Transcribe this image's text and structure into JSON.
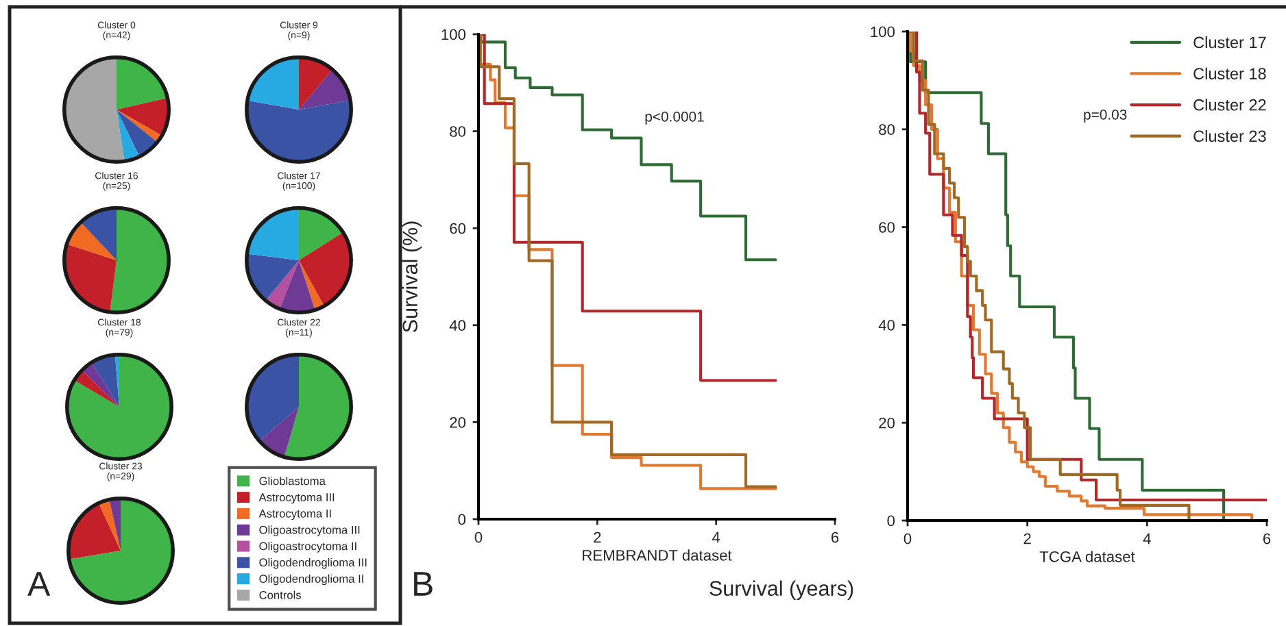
{
  "chart_data": [
    {
      "type": "pie",
      "title": "Cluster 0",
      "subtitle": "(n=42)",
      "categories": [
        "Glioblastoma",
        "Astrocytoma III",
        "Astrocytoma II",
        "Oligoastrocytoma III",
        "Oligoastrocytoma II",
        "Oligodendroglioma III",
        "Oligodendroglioma II",
        "Controls"
      ],
      "values": [
        21.4,
        11.9,
        2.4,
        0,
        0,
        7.1,
        4.8,
        52.4
      ],
      "colors": [
        "#3fb549",
        "#c3202a",
        "#f26b22",
        "#6e3a96",
        "#b54fa0",
        "#3a53a4",
        "#27aae1",
        "#a7a7a7"
      ],
      "legend": "bottom right"
    },
    {
      "type": "pie",
      "title": "Cluster 9",
      "subtitle": "(n=9)",
      "categories": [
        null,
        null,
        null,
        null,
        null,
        null,
        null,
        null
      ],
      "values": [
        0,
        11.1,
        0,
        11.1,
        0,
        55.6,
        22.2,
        0
      ],
      "colors": [
        "#3fb549",
        "#c3202a",
        "#f26b22",
        "#6e3a96",
        "#b54fa0",
        "#3a53a4",
        "#27aae1",
        "#a7a7a7"
      ]
    },
    {
      "type": "pie",
      "title": "Cluster 16",
      "subtitle": "(n=25)",
      "categories": [
        null,
        null,
        null,
        null,
        null,
        null,
        null,
        null
      ],
      "values": [
        52,
        28,
        8,
        0,
        0,
        12,
        0,
        0
      ],
      "colors": [
        "#3fb549",
        "#c3202a",
        "#f26b22",
        "#6e3a96",
        "#b54fa0",
        "#3a53a4",
        "#27aae1",
        "#a7a7a7"
      ]
    },
    {
      "type": "pie",
      "title": "Cluster 17",
      "subtitle": "(n=100)",
      "categories": [
        null,
        null,
        null,
        null,
        null,
        null,
        null,
        null
      ],
      "values": [
        16,
        26,
        3,
        11,
        5,
        16,
        23,
        0
      ],
      "colors": [
        "#3fb549",
        "#c3202a",
        "#f26b22",
        "#6e3a96",
        "#b54fa0",
        "#3a53a4",
        "#27aae1",
        "#a7a7a7"
      ]
    },
    {
      "type": "pie",
      "title": "Cluster 18",
      "subtitle": "(n=79)",
      "categories": [
        null,
        null,
        null,
        null,
        null,
        null,
        null,
        null
      ],
      "values": [
        83.5,
        3.8,
        0,
        3.8,
        0,
        7.6,
        1.3,
        0
      ],
      "colors": [
        "#3fb549",
        "#c3202a",
        "#f26b22",
        "#6e3a96",
        "#b54fa0",
        "#3a53a4",
        "#27aae1",
        "#a7a7a7"
      ]
    },
    {
      "type": "pie",
      "title": "Cluster 22",
      "subtitle": "(n=11)",
      "categories": [
        null,
        null,
        null,
        null,
        null,
        null,
        null,
        null
      ],
      "values": [
        54.5,
        0,
        0,
        9.1,
        0,
        36.4,
        0,
        0
      ],
      "colors": [
        "#3fb549",
        "#c3202a",
        "#f26b22",
        "#6e3a96",
        "#b54fa0",
        "#3a53a4",
        "#27aae1",
        "#a7a7a7"
      ]
    },
    {
      "type": "pie",
      "title": "Cluster 23",
      "subtitle": "(n=29)",
      "categories": [
        null,
        null,
        null,
        null,
        null,
        null,
        null,
        null
      ],
      "values": [
        72.4,
        20.7,
        3.4,
        3.5,
        0,
        0,
        0,
        0
      ],
      "colors": [
        "#3fb549",
        "#c3202a",
        "#f26b22",
        "#6e3a96",
        "#b54fa0",
        "#3a53a4",
        "#27aae1",
        "#a7a7a7"
      ],
      "annotations": [
        "A"
      ]
    },
    {
      "type": "step",
      "xlabel": "REMBRANDT dataset",
      "ylabel": "Survival (%)",
      "xlim": [
        0,
        6
      ],
      "ylim": [
        0,
        100
      ],
      "xticks": [
        0,
        2,
        4,
        6
      ],
      "yticks": [
        0,
        20,
        40,
        60,
        80,
        100
      ],
      "annotations": [
        "p<0.0001",
        "B",
        "Survival (years)"
      ],
      "series": [
        {
          "color": "#2e6b35",
          "x": [
            0,
            0.04,
            0.45,
            0.62,
            0.87,
            1.24,
            1.75,
            2.24,
            2.74,
            3.25,
            3.74,
            4.5,
            5.0
          ],
          "values": [
            100,
            98.4,
            93.1,
            91,
            89,
            87.5,
            80.3,
            78.6,
            73.1,
            69.7,
            62.5,
            53.5,
            53.5
          ]
        },
        {
          "color": "#e07a30",
          "x": [
            0,
            0.03,
            0.2,
            0.28,
            0.45,
            0.6,
            0.85,
            1.24,
            1.75,
            2.24,
            2.74,
            3.74,
            5.0
          ],
          "values": [
            100,
            93.8,
            90.6,
            85.9,
            80.7,
            66.7,
            55.6,
            31.7,
            17.5,
            12.7,
            11.1,
            6.3,
            6.3
          ]
        },
        {
          "color": "#b0282a",
          "x": [
            0,
            0.1,
            0.6,
            1.75,
            3.74,
            5.0
          ],
          "values": [
            100,
            85.7,
            57.1,
            42.9,
            28.6,
            28.6
          ]
        },
        {
          "color": "#a06a25",
          "x": [
            0,
            0.03,
            0.35,
            0.6,
            0.85,
            1.24,
            2.24,
            4.5,
            5.0
          ],
          "values": [
            100,
            93.3,
            86.7,
            73.3,
            53.3,
            20,
            13.3,
            6.7,
            6.7
          ]
        }
      ]
    },
    {
      "type": "step",
      "xlabel": "TCGA dataset",
      "xlim": [
        0,
        6
      ],
      "ylim": [
        0,
        100
      ],
      "xticks": [
        0,
        2,
        4,
        6
      ],
      "yticks": [
        0,
        20,
        40,
        60,
        80,
        100
      ],
      "annotations": [
        "p=0.03"
      ],
      "legend": "top right",
      "series": [
        {
          "name": "Cluster 17",
          "color": "#2e6b35",
          "x": [
            0,
            0.05,
            0.3,
            1.23,
            1.35,
            1.64,
            1.67,
            1.72,
            1.87,
            2.45,
            2.77,
            2.8,
            3.04,
            3.2,
            3.92,
            5.28
          ],
          "values": [
            100,
            93.8,
            87.5,
            81.2,
            75,
            62.5,
            56.2,
            50,
            43.7,
            37.5,
            31.2,
            25,
            18.8,
            12.5,
            6.2,
            0
          ]
        },
        {
          "name": "Cluster 18",
          "color": "#e07a30",
          "x": [
            0,
            0.05,
            0.1,
            0.2,
            0.3,
            0.4,
            0.5,
            0.6,
            0.7,
            0.8,
            0.9,
            1.0,
            1.1,
            1.2,
            1.3,
            1.4,
            1.5,
            1.6,
            1.7,
            1.8,
            1.9,
            2.0,
            2.1,
            2.2,
            2.3,
            2.5,
            2.7,
            2.9,
            3.0,
            3.3,
            3.95,
            5.75
          ],
          "values": [
            100,
            96,
            93,
            90,
            85,
            80,
            74,
            68,
            63,
            57,
            50,
            44,
            39,
            34,
            30,
            26,
            22,
            19,
            16,
            14,
            12,
            11,
            10,
            9,
            7,
            6,
            5,
            4,
            3,
            2.5,
            1.2,
            0
          ]
        },
        {
          "name": "Cluster 22",
          "color": "#b0282a",
          "x": [
            0,
            0.15,
            0.2,
            0.3,
            0.37,
            0.6,
            0.75,
            0.9,
            1.0,
            1.05,
            1.08,
            1.1,
            1.25,
            1.45,
            2.0,
            2.9,
            3.15,
            6.0
          ],
          "values": [
            100,
            91.7,
            83.3,
            79.2,
            70.8,
            62.5,
            58.3,
            54.2,
            41.7,
            37.5,
            33.3,
            29.2,
            25,
            20.8,
            12.5,
            8.3,
            4.2,
            4.2
          ]
        },
        {
          "name": "Cluster 23",
          "color": "#a06a25",
          "x": [
            0,
            0.1,
            0.25,
            0.35,
            0.45,
            0.6,
            0.7,
            0.78,
            0.85,
            0.95,
            1.0,
            1.05,
            1.15,
            1.25,
            1.3,
            1.4,
            1.6,
            1.7,
            1.75,
            1.85,
            1.95,
            2.05,
            2.55,
            3.5,
            3.55,
            4.7
          ],
          "values": [
            100,
            94,
            88,
            81,
            75,
            72,
            69,
            66,
            62,
            56,
            53,
            50,
            47,
            44,
            41,
            34.5,
            31,
            28,
            25,
            22,
            19,
            12.5,
            9.4,
            6.2,
            3.1,
            0
          ]
        }
      ]
    }
  ]
}
